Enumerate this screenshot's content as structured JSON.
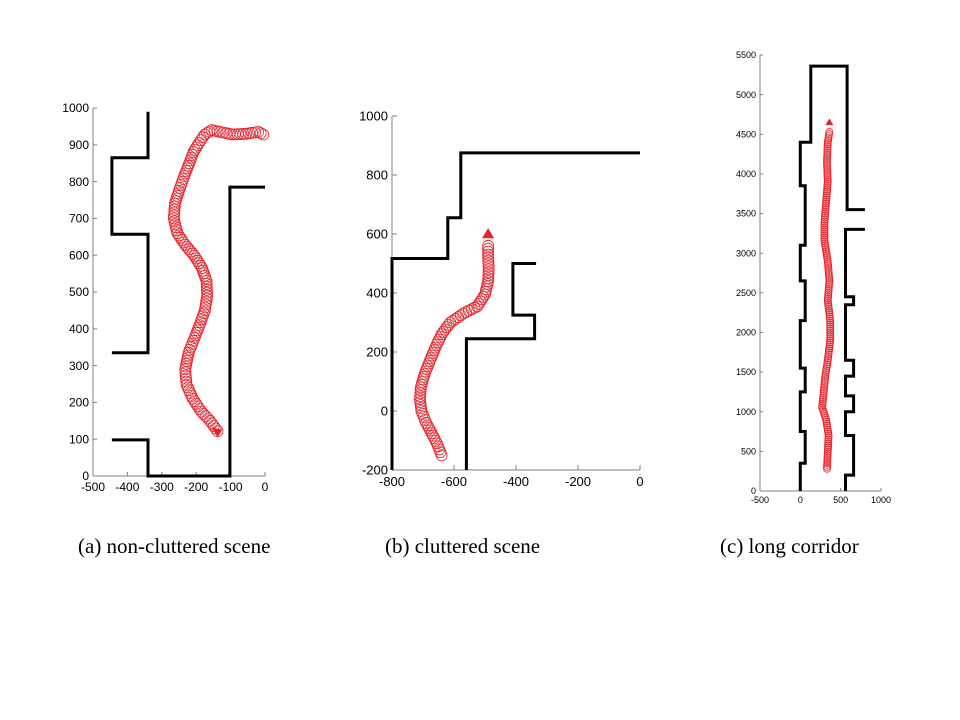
{
  "captions": {
    "a": "(a) non-cluttered scene",
    "b": "(b) cluttered scene",
    "c": "(c) long corridor"
  },
  "colors": {
    "walls": "#000000",
    "trajectory": "#e8232b",
    "axis": "#808080"
  },
  "chart_data": [
    {
      "type": "line",
      "xlim": [
        -500,
        0
      ],
      "ylim": [
        0,
        1000
      ],
      "xticks": [
        -500,
        -400,
        -300,
        -200,
        -100,
        0
      ],
      "yticks": [
        0,
        100,
        200,
        300,
        400,
        500,
        600,
        700,
        800,
        900,
        1000
      ],
      "grid": false,
      "walls": [
        [
          [
            -340,
            990
          ],
          [
            -340,
            865
          ],
          [
            -445,
            865
          ],
          [
            -445,
            657
          ],
          [
            -340,
            657
          ],
          [
            -340,
            335
          ],
          [
            -445,
            335
          ]
        ],
        [
          [
            -445,
            98
          ],
          [
            -340,
            98
          ],
          [
            -340,
            0
          ],
          [
            -102,
            0
          ],
          [
            -102,
            785
          ],
          [
            0,
            785
          ]
        ]
      ],
      "trajectory": [
        [
          -138,
          122
        ],
        [
          -160,
          150
        ],
        [
          -185,
          175
        ],
        [
          -210,
          210
        ],
        [
          -228,
          248
        ],
        [
          -232,
          290
        ],
        [
          -222,
          335
        ],
        [
          -205,
          375
        ],
        [
          -190,
          410
        ],
        [
          -175,
          450
        ],
        [
          -168,
          490
        ],
        [
          -170,
          530
        ],
        [
          -183,
          565
        ],
        [
          -205,
          598
        ],
        [
          -232,
          628
        ],
        [
          -255,
          660
        ],
        [
          -265,
          700
        ],
        [
          -262,
          740
        ],
        [
          -250,
          775
        ],
        [
          -235,
          815
        ],
        [
          -220,
          850
        ],
        [
          -208,
          880
        ],
        [
          -192,
          905
        ],
        [
          -175,
          928
        ],
        [
          -155,
          940
        ],
        [
          -130,
          935
        ],
        [
          -95,
          928
        ],
        [
          -55,
          930
        ],
        [
          -20,
          935
        ],
        [
          -5,
          928
        ]
      ],
      "end_marker": [
        -138,
        122
      ]
    },
    {
      "type": "line",
      "xlim": [
        -800,
        0
      ],
      "ylim": [
        -200,
        1000
      ],
      "xticks": [
        -800,
        -600,
        -400,
        -200,
        0
      ],
      "yticks": [
        -200,
        0,
        200,
        400,
        600,
        800,
        1000
      ],
      "grid": false,
      "walls": [
        [
          [
            -800,
            -200
          ],
          [
            -800,
            517
          ],
          [
            -620,
            517
          ],
          [
            -620,
            655
          ],
          [
            -578,
            655
          ],
          [
            -578,
            875
          ],
          [
            0,
            875
          ]
        ],
        [
          [
            -560,
            -200
          ],
          [
            -560,
            245
          ],
          [
            -340,
            245
          ],
          [
            -340,
            325
          ],
          [
            -410,
            325
          ],
          [
            -410,
            500
          ],
          [
            -335,
            500
          ]
        ]
      ],
      "trajectory": [
        [
          -640,
          -150
        ],
        [
          -655,
          -110
        ],
        [
          -672,
          -75
        ],
        [
          -690,
          -40
        ],
        [
          -705,
          0
        ],
        [
          -710,
          40
        ],
        [
          -707,
          80
        ],
        [
          -695,
          125
        ],
        [
          -678,
          170
        ],
        [
          -660,
          215
        ],
        [
          -640,
          260
        ],
        [
          -612,
          300
        ],
        [
          -570,
          330
        ],
        [
          -525,
          355
        ],
        [
          -500,
          395
        ],
        [
          -490,
          440
        ],
        [
          -488,
          480
        ],
        [
          -490,
          520
        ],
        [
          -490,
          560
        ]
      ],
      "end_marker": [
        -490,
        600
      ]
    },
    {
      "type": "line",
      "xlim": [
        -500,
        1000
      ],
      "ylim": [
        0,
        5500
      ],
      "xticks": [
        -500,
        0,
        500,
        1000
      ],
      "yticks": [
        0,
        500,
        1000,
        1500,
        2000,
        2500,
        3000,
        3500,
        4000,
        4500,
        5000,
        5500
      ],
      "grid": false,
      "walls": [
        [
          [
            0,
            0
          ],
          [
            0,
            350
          ],
          [
            60,
            350
          ],
          [
            60,
            750
          ],
          [
            0,
            750
          ],
          [
            0,
            1250
          ],
          [
            60,
            1250
          ],
          [
            60,
            1550
          ],
          [
            0,
            1550
          ],
          [
            0,
            2150
          ],
          [
            60,
            2150
          ],
          [
            60,
            2650
          ],
          [
            0,
            2650
          ],
          [
            0,
            3100
          ],
          [
            60,
            3100
          ],
          [
            60,
            3850
          ],
          [
            0,
            3850
          ],
          [
            0,
            4400
          ],
          [
            130,
            4400
          ],
          [
            130,
            5360
          ],
          [
            580,
            5360
          ],
          [
            580,
            3550
          ],
          [
            800,
            3550
          ]
        ],
        [
          [
            800,
            3300
          ],
          [
            560,
            3300
          ],
          [
            560,
            2450
          ],
          [
            660,
            2450
          ],
          [
            660,
            2350
          ],
          [
            560,
            2350
          ],
          [
            560,
            1650
          ],
          [
            660,
            1650
          ],
          [
            660,
            1450
          ],
          [
            560,
            1450
          ],
          [
            560,
            1200
          ],
          [
            660,
            1200
          ],
          [
            660,
            1000
          ],
          [
            560,
            1000
          ],
          [
            560,
            700
          ],
          [
            660,
            700
          ],
          [
            660,
            200
          ],
          [
            560,
            200
          ],
          [
            560,
            0
          ]
        ]
      ],
      "trajectory": [
        [
          330,
          280
        ],
        [
          340,
          500
        ],
        [
          350,
          700
        ],
        [
          320,
          900
        ],
        [
          270,
          1050
        ],
        [
          290,
          1250
        ],
        [
          310,
          1450
        ],
        [
          340,
          1650
        ],
        [
          370,
          1900
        ],
        [
          370,
          2150
        ],
        [
          340,
          2400
        ],
        [
          360,
          2650
        ],
        [
          340,
          2900
        ],
        [
          300,
          3150
        ],
        [
          300,
          3400
        ],
        [
          320,
          3650
        ],
        [
          340,
          3900
        ],
        [
          330,
          4150
        ],
        [
          340,
          4400
        ],
        [
          360,
          4530
        ]
      ],
      "end_marker": [
        360,
        4650
      ]
    }
  ]
}
